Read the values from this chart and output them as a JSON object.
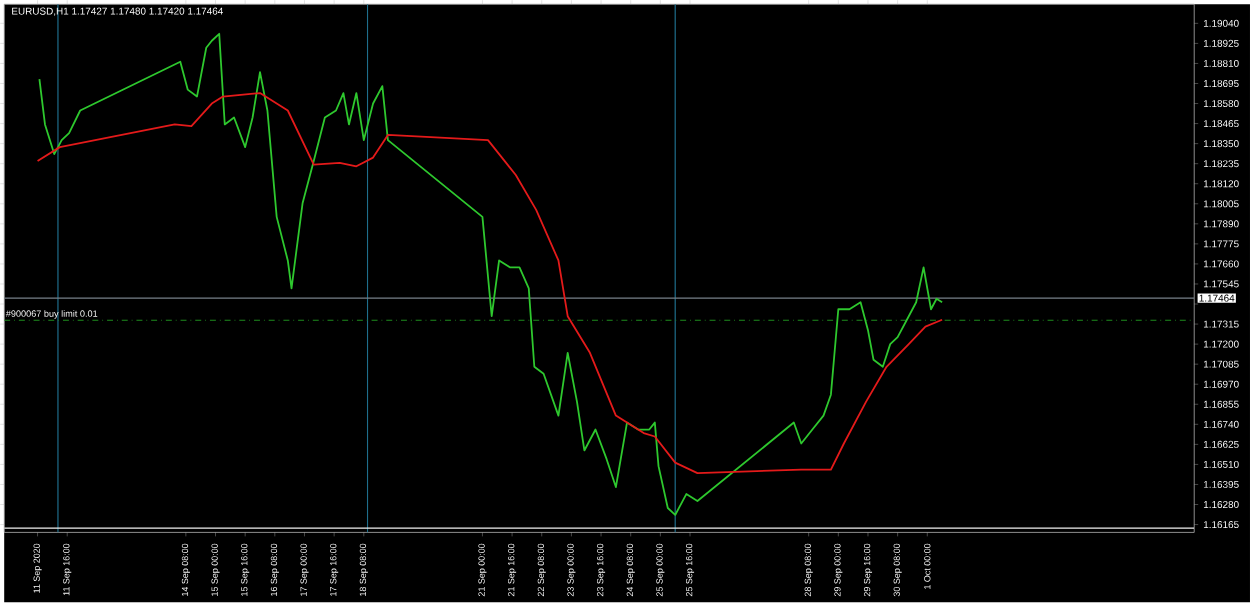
{
  "chart_data": {
    "type": "line",
    "title": "EURUSD,H1  1.17427 1.17480 1.17420 1.17464",
    "xlim": [
      "2020-09-10T06:00",
      "2020-10-07T00:00"
    ],
    "ylim": [
      1.1612,
      1.1915
    ],
    "xticks": [
      {
        "value": "2020-09-11T00:00",
        "label": "11 Sep 2020"
      },
      {
        "value": "2020-09-11T16:00",
        "label": "11 Sep 16:00"
      },
      {
        "value": "2020-09-14T08:00",
        "label": "14 Sep 08:00"
      },
      {
        "value": "2020-09-15T00:00",
        "label": "15 Sep 00:00"
      },
      {
        "value": "2020-09-15T16:00",
        "label": "15 Sep 16:00"
      },
      {
        "value": "2020-09-16T08:00",
        "label": "16 Sep 08:00"
      },
      {
        "value": "2020-09-17T00:00",
        "label": "17 Sep 00:00"
      },
      {
        "value": "2020-09-17T16:00",
        "label": "17 Sep 16:00"
      },
      {
        "value": "2020-09-18T08:00",
        "label": "18 Sep 08:00"
      },
      {
        "value": "2020-09-21T00:00",
        "label": "21 Sep 00:00"
      },
      {
        "value": "2020-09-21T16:00",
        "label": "21 Sep 16:00"
      },
      {
        "value": "2020-09-22T08:00",
        "label": "22 Sep 08:00"
      },
      {
        "value": "2020-09-23T00:00",
        "label": "23 Sep 00:00"
      },
      {
        "value": "2020-09-23T16:00",
        "label": "23 Sep 16:00"
      },
      {
        "value": "2020-09-24T08:00",
        "label": "24 Sep 08:00"
      },
      {
        "value": "2020-09-25T00:00",
        "label": "25 Sep 00:00"
      },
      {
        "value": "2020-09-25T16:00",
        "label": "25 Sep 16:00"
      },
      {
        "value": "2020-09-28T08:00",
        "label": "28 Sep 08:00"
      },
      {
        "value": "2020-09-29T00:00",
        "label": "29 Sep 00:00"
      },
      {
        "value": "2020-09-29T16:00",
        "label": "29 Sep 16:00"
      },
      {
        "value": "2020-09-30T08:00",
        "label": "30 Sep 08:00"
      },
      {
        "value": "2020-10-01T00:00",
        "label": "1 Oct 00:00"
      }
    ],
    "yticks": [
      {
        "value": 1.1904,
        "label": "1.19040"
      },
      {
        "value": 1.18925,
        "label": "1.18925"
      },
      {
        "value": 1.1881,
        "label": "1.18810"
      },
      {
        "value": 1.18695,
        "label": "1.18695"
      },
      {
        "value": 1.1858,
        "label": "1.18580"
      },
      {
        "value": 1.18465,
        "label": "1.18465"
      },
      {
        "value": 1.1835,
        "label": "1.18350"
      },
      {
        "value": 1.18235,
        "label": "1.18235"
      },
      {
        "value": 1.1812,
        "label": "1.18120"
      },
      {
        "value": 1.18005,
        "label": "1.18005"
      },
      {
        "value": 1.1789,
        "label": "1.17890"
      },
      {
        "value": 1.17775,
        "label": "1.17775"
      },
      {
        "value": 1.1766,
        "label": "1.17660"
      },
      {
        "value": 1.17545,
        "label": "1.17545"
      },
      {
        "value": 1.1743,
        "label": null
      },
      {
        "value": 1.17315,
        "label": "1.17315"
      },
      {
        "value": 1.172,
        "label": "1.17200"
      },
      {
        "value": 1.17085,
        "label": "1.17085"
      },
      {
        "value": 1.1697,
        "label": "1.16970"
      },
      {
        "value": 1.16855,
        "label": "1.16855"
      },
      {
        "value": 1.1674,
        "label": "1.16740"
      },
      {
        "value": 1.16625,
        "label": "1.16625"
      },
      {
        "value": 1.1651,
        "label": "1.16510"
      },
      {
        "value": 1.16395,
        "label": "1.16395"
      },
      {
        "value": 1.1628,
        "label": "1.16280"
      },
      {
        "value": 1.16165,
        "label": "1.16165"
      }
    ],
    "series": [
      {
        "color": "#2ec82e",
        "x": [
          "2020-09-11T01:00",
          "2020-09-11T04:00",
          "2020-09-11T09:00",
          "2020-09-11T13:00",
          "2020-09-11T17:00",
          "2020-09-11T23:00",
          "2020-09-14T05:00",
          "2020-09-14T09:00",
          "2020-09-14T14:00",
          "2020-09-14T19:00",
          "2020-09-14T22:00",
          "2020-09-15T02:00",
          "2020-09-15T05:00",
          "2020-09-15T10:00",
          "2020-09-15T16:00",
          "2020-09-15T20:00",
          "2020-09-16T00:00",
          "2020-09-16T04:00",
          "2020-09-16T09:00",
          "2020-09-16T15:00",
          "2020-09-16T17:00",
          "2020-09-16T23:00",
          "2020-09-17T05:00",
          "2020-09-17T11:00",
          "2020-09-17T17:00",
          "2020-09-17T21:00",
          "2020-09-18T00:00",
          "2020-09-18T04:00",
          "2020-09-18T08:00",
          "2020-09-18T13:00",
          "2020-09-18T18:00",
          "2020-09-18T21:00",
          "2020-09-21T00:00",
          "2020-09-21T05:00",
          "2020-09-21T09:00",
          "2020-09-21T15:00",
          "2020-09-21T20:00",
          "2020-09-22T01:00",
          "2020-09-22T04:00",
          "2020-09-22T09:00",
          "2020-09-22T17:00",
          "2020-09-22T22:00",
          "2020-09-23T03:00",
          "2020-09-23T07:00",
          "2020-09-23T13:00",
          "2020-09-23T19:00",
          "2020-09-24T00:00",
          "2020-09-24T06:00",
          "2020-09-24T12:00",
          "2020-09-24T18:00",
          "2020-09-24T21:00",
          "2020-09-24T23:00",
          "2020-09-25T04:00",
          "2020-09-25T08:00",
          "2020-09-25T14:00",
          "2020-09-25T20:00",
          "2020-09-28T00:00",
          "2020-09-28T04:00",
          "2020-09-28T10:00",
          "2020-09-28T16:00",
          "2020-09-28T20:00",
          "2020-09-29T00:00",
          "2020-09-29T06:00",
          "2020-09-29T12:00",
          "2020-09-29T16:00",
          "2020-09-29T19:00",
          "2020-09-30T00:00",
          "2020-09-30T04:00",
          "2020-09-30T08:00",
          "2020-09-30T14:00",
          "2020-09-30T18:00",
          "2020-09-30T22:00",
          "2020-10-01T02:00",
          "2020-10-01T05:00",
          "2020-10-01T08:00"
        ],
        "values": [
          1.1872,
          1.1846,
          1.1829,
          1.1837,
          1.1841,
          1.1854,
          1.1882,
          1.1866,
          1.1862,
          1.189,
          1.1894,
          1.1898,
          1.1846,
          1.185,
          1.1833,
          1.185,
          1.1876,
          1.1854,
          1.1793,
          1.1768,
          1.1752,
          1.1801,
          1.1825,
          1.185,
          1.1854,
          1.1864,
          1.1846,
          1.1864,
          1.1837,
          1.1858,
          1.1868,
          1.1837,
          1.1793,
          1.1736,
          1.1768,
          1.1764,
          1.1764,
          1.1752,
          1.1707,
          1.1703,
          1.1679,
          1.1715,
          1.1687,
          1.1659,
          1.1671,
          1.1654,
          1.1638,
          1.1675,
          1.1671,
          1.1671,
          1.1675,
          1.165,
          1.1626,
          1.1622,
          1.1634,
          1.163,
          1.1675,
          1.1663,
          1.1671,
          1.1679,
          1.1691,
          1.174,
          1.174,
          1.1744,
          1.1728,
          1.1711,
          1.1707,
          1.172,
          1.1724,
          1.1736,
          1.1744,
          1.1764,
          1.174,
          1.1746,
          1.1744
        ]
      },
      {
        "color": "#e41a1a",
        "x": [
          "2020-09-11T00:00",
          "2020-09-11T12:00",
          "2020-09-14T02:00",
          "2020-09-14T11:00",
          "2020-09-14T22:00",
          "2020-09-15T04:00",
          "2020-09-16T00:00",
          "2020-09-16T15:00",
          "2020-09-17T05:00",
          "2020-09-17T19:00",
          "2020-09-18T04:00",
          "2020-09-18T13:00",
          "2020-09-18T21:00",
          "2020-09-21T03:00",
          "2020-09-21T18:00",
          "2020-09-22T05:00",
          "2020-09-22T17:00",
          "2020-09-22T22:00",
          "2020-09-23T10:00",
          "2020-09-24T00:00",
          "2020-09-24T15:00",
          "2020-09-24T21:00",
          "2020-09-25T08:00",
          "2020-09-25T20:00",
          "2020-09-28T04:00",
          "2020-09-28T20:00",
          "2020-09-29T03:00",
          "2020-09-29T15:00",
          "2020-09-30T02:00",
          "2020-09-30T14:00",
          "2020-09-30T23:00",
          "2020-10-01T08:00"
        ],
        "values": [
          1.1825,
          1.1833,
          1.1846,
          1.1845,
          1.1858,
          1.1862,
          1.1864,
          1.1854,
          1.1823,
          1.1824,
          1.1822,
          1.1827,
          1.184,
          1.1837,
          1.1817,
          1.1797,
          1.1768,
          1.1736,
          1.1715,
          1.1679,
          1.1669,
          1.1667,
          1.1652,
          1.1646,
          1.1648,
          1.1648,
          1.1663,
          1.1687,
          1.1707,
          1.172,
          1.173,
          1.1734
        ]
      }
    ],
    "ref_lines": [
      {
        "axis": "x",
        "value": "2020-09-11T11:00",
        "color": "#1f6e8c",
        "line_style": "solid"
      },
      {
        "axis": "x",
        "value": "2020-09-18T10:00",
        "color": "#1f6e8c",
        "line_style": "solid"
      },
      {
        "axis": "x",
        "value": "2020-09-25T08:00",
        "color": "#1f6e8c",
        "line_style": "solid"
      },
      {
        "axis": "y",
        "value": 1.17464,
        "label": "1.17464",
        "color": "#77808a",
        "line_style": "solid"
      },
      {
        "axis": "y",
        "value": 1.17337,
        "label": "#900067 buy limit 0.01",
        "color": "#1e8c1e",
        "line_style": "dashdotted"
      },
      {
        "axis": "y",
        "value": 1.16144,
        "color": "#f0f0f0",
        "line_style": "solid"
      }
    ],
    "grid": false,
    "marker": "none"
  }
}
